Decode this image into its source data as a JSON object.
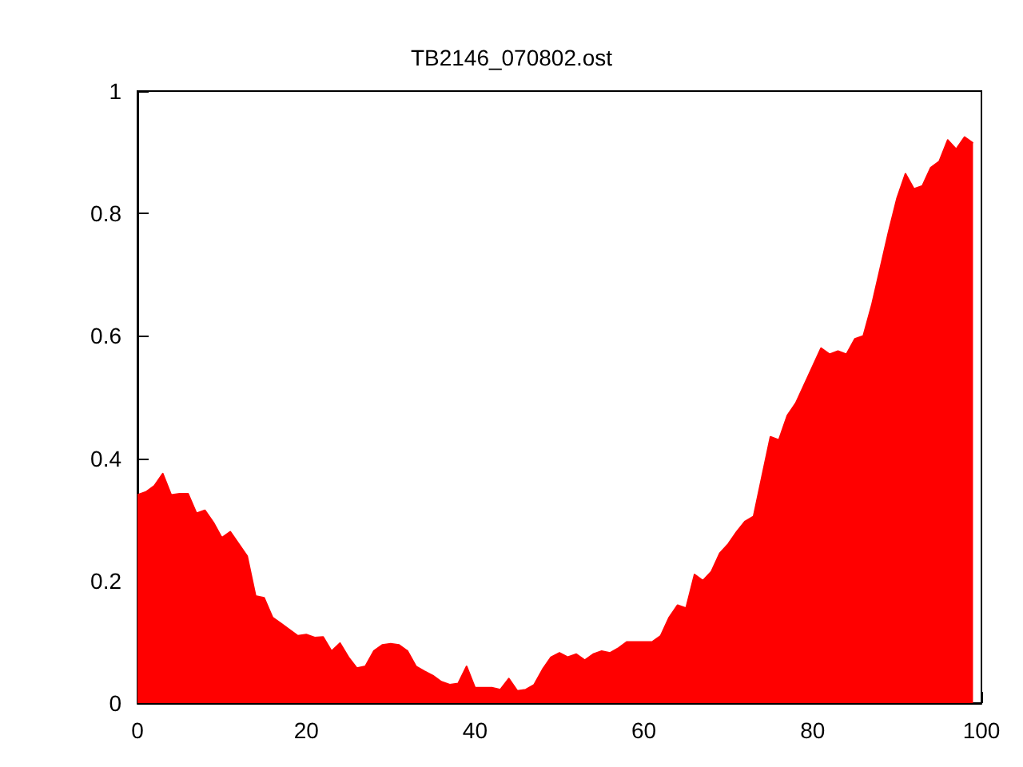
{
  "chart_data": {
    "type": "area",
    "title": "TB2146_070802.ost",
    "x": [
      0,
      1,
      2,
      3,
      4,
      5,
      6,
      7,
      8,
      9,
      10,
      11,
      12,
      13,
      14,
      15,
      16,
      17,
      18,
      19,
      20,
      21,
      22,
      23,
      24,
      25,
      26,
      27,
      28,
      29,
      30,
      31,
      32,
      33,
      34,
      35,
      36,
      37,
      38,
      39,
      40,
      41,
      42,
      43,
      44,
      45,
      46,
      47,
      48,
      49,
      50,
      51,
      52,
      53,
      54,
      55,
      56,
      57,
      58,
      59,
      60,
      61,
      62,
      63,
      64,
      65,
      66,
      67,
      68,
      69,
      70,
      71,
      72,
      73,
      74,
      75,
      76,
      77,
      78,
      79,
      80,
      81,
      82,
      83,
      84,
      85,
      86,
      87,
      88,
      89,
      90,
      91,
      92,
      93,
      94,
      95,
      96,
      97,
      98,
      99
    ],
    "series": [
      {
        "color": "#ff0000",
        "values": [
          0.34,
          0.345,
          0.355,
          0.375,
          0.34,
          0.342,
          0.342,
          0.31,
          0.315,
          0.295,
          0.27,
          0.28,
          0.26,
          0.24,
          0.175,
          0.172,
          0.14,
          0.13,
          0.12,
          0.11,
          0.112,
          0.107,
          0.108,
          0.085,
          0.098,
          0.075,
          0.057,
          0.06,
          0.085,
          0.095,
          0.097,
          0.095,
          0.085,
          0.06,
          0.052,
          0.045,
          0.035,
          0.03,
          0.032,
          0.06,
          0.025,
          0.025,
          0.025,
          0.022,
          0.04,
          0.02,
          0.022,
          0.03,
          0.055,
          0.075,
          0.082,
          0.075,
          0.08,
          0.07,
          0.08,
          0.085,
          0.082,
          0.09,
          0.1,
          0.1,
          0.1,
          0.1,
          0.11,
          0.14,
          0.16,
          0.155,
          0.21,
          0.2,
          0.215,
          0.245,
          0.26,
          0.28,
          0.297,
          0.305,
          0.37,
          0.435,
          0.43,
          0.47,
          0.49,
          0.52,
          0.55,
          0.58,
          0.57,
          0.575,
          0.57,
          0.595,
          0.6,
          0.65,
          0.71,
          0.77,
          0.825,
          0.865,
          0.84,
          0.845,
          0.875,
          0.885,
          0.92,
          0.905,
          0.925,
          0.915
        ]
      }
    ],
    "xlim": [
      0,
      100
    ],
    "xticks": [
      0,
      20,
      40,
      60,
      80,
      100
    ],
    "ylim": [
      0,
      1
    ],
    "yticks": [
      0,
      0.2,
      0.4,
      0.6,
      0.8,
      1
    ]
  }
}
